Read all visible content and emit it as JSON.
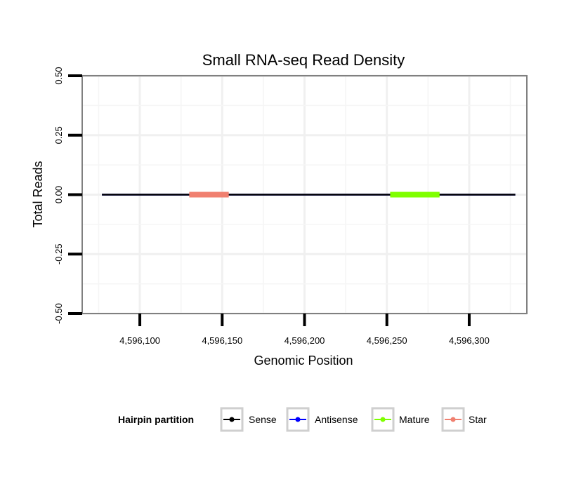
{
  "chart_data": {
    "type": "line",
    "title": "Small RNA-seq Read Density",
    "xlabel": "Genomic Position",
    "ylabel": "Total Reads",
    "xlim": [
      4596065,
      4596335
    ],
    "ylim": [
      -0.5,
      0.5
    ],
    "x_ticks": [
      4596100,
      4596150,
      4596200,
      4596250,
      4596300
    ],
    "x_tick_labels": [
      "4,596,100",
      "4,596,150",
      "4,596,200",
      "4,596,250",
      "4,596,300"
    ],
    "y_ticks": [
      -0.5,
      -0.25,
      0.0,
      0.25,
      0.5
    ],
    "y_tick_labels": [
      "-0.50",
      "-0.25",
      "0.00",
      "0.25",
      "0.50"
    ],
    "grid": true,
    "series": [
      {
        "name": "Sense",
        "color": "#000000",
        "x": [
          4596077,
          4596328
        ],
        "values": [
          0,
          0
        ]
      },
      {
        "name": "Antisense",
        "color": "#0000ff",
        "x": [
          4596077,
          4596328
        ],
        "values": [
          0,
          0
        ]
      },
      {
        "name": "Mature",
        "color": "#7fff00",
        "x": [
          4596252,
          4596282
        ],
        "values": [
          0,
          0
        ]
      },
      {
        "name": "Star",
        "color": "#f08070",
        "x": [
          4596130,
          4596154
        ],
        "values": [
          0,
          0
        ]
      }
    ],
    "legend": {
      "title": "Hairpin partition",
      "position": "bottom",
      "entries": [
        "Sense",
        "Antisense",
        "Mature",
        "Star"
      ]
    }
  }
}
